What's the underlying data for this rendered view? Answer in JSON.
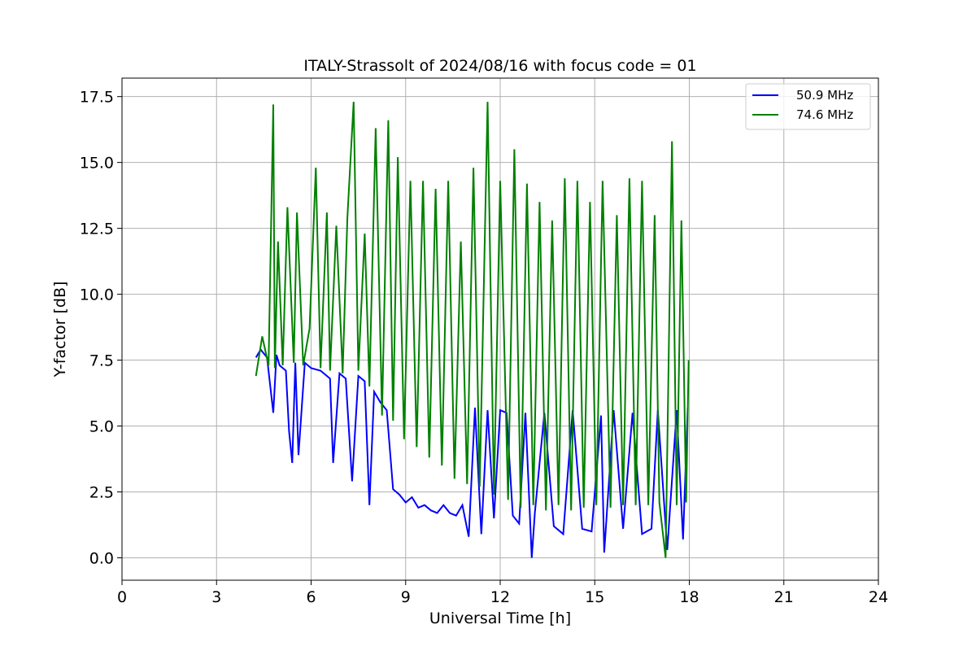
{
  "chart_data": {
    "type": "line",
    "title": "ITALY-Strassolt of 2024/08/16 with focus code = 01",
    "xlabel": "Universal Time [h]",
    "ylabel": "Y-factor [dB]",
    "xlim": [
      0,
      24
    ],
    "ylim": [
      -0.85,
      18.2
    ],
    "xticks": [
      0,
      3,
      6,
      9,
      12,
      15,
      18,
      21,
      24
    ],
    "xtick_labels": [
      "0",
      "3",
      "6",
      "9",
      "12",
      "15",
      "18",
      "21",
      "24"
    ],
    "yticks": [
      0.0,
      2.5,
      5.0,
      7.5,
      10.0,
      12.5,
      15.0,
      17.5
    ],
    "ytick_labels": [
      "0.0",
      "2.5",
      "5.0",
      "7.5",
      "10.0",
      "12.5",
      "15.0",
      "17.5"
    ],
    "grid": true,
    "legend_position": "top-right",
    "series": [
      {
        "name": "50.9 MHz",
        "color": "#0000ff",
        "x": [
          4.25,
          4.4,
          4.6,
          4.8,
          4.9,
          5.0,
          5.2,
          5.3,
          5.4,
          5.5,
          5.6,
          5.8,
          6.0,
          6.3,
          6.6,
          6.7,
          6.9,
          7.1,
          7.3,
          7.5,
          7.7,
          7.85,
          8.0,
          8.2,
          8.4,
          8.6,
          8.8,
          9.0,
          9.2,
          9.4,
          9.6,
          9.8,
          10.0,
          10.2,
          10.4,
          10.6,
          10.8,
          11.0,
          11.2,
          11.4,
          11.6,
          11.8,
          12.0,
          12.2,
          12.4,
          12.6,
          12.8,
          13.0,
          13.1,
          13.4,
          13.7,
          14.0,
          14.3,
          14.6,
          14.9,
          15.2,
          15.3,
          15.6,
          15.9,
          16.2,
          16.5,
          16.8,
          17.0,
          17.3,
          17.6,
          17.8,
          17.95
        ],
        "y": [
          7.6,
          7.9,
          7.6,
          5.5,
          7.7,
          7.3,
          7.1,
          4.8,
          3.6,
          7.4,
          3.9,
          7.4,
          7.2,
          7.1,
          6.8,
          3.6,
          7.0,
          6.8,
          2.9,
          6.9,
          6.7,
          2.0,
          6.3,
          5.9,
          5.6,
          2.6,
          2.4,
          2.1,
          2.3,
          1.9,
          2.0,
          1.8,
          1.7,
          2.0,
          1.7,
          1.6,
          2.0,
          0.8,
          5.7,
          0.9,
          5.6,
          1.5,
          5.6,
          5.5,
          1.6,
          1.3,
          5.5,
          0.0,
          1.7,
          5.5,
          1.2,
          0.9,
          5.6,
          1.1,
          1.0,
          5.4,
          0.2,
          5.6,
          1.1,
          5.5,
          0.9,
          1.1,
          5.6,
          0.3,
          5.6,
          0.7,
          5.7
        ]
      },
      {
        "name": "74.6 MHz",
        "color": "#008000",
        "x": [
          4.25,
          4.45,
          4.65,
          4.8,
          4.85,
          4.95,
          5.1,
          5.25,
          5.45,
          5.55,
          5.75,
          5.95,
          6.15,
          6.3,
          6.5,
          6.6,
          6.8,
          7.0,
          7.15,
          7.35,
          7.5,
          7.7,
          7.85,
          8.05,
          8.25,
          8.45,
          8.6,
          8.75,
          8.95,
          9.15,
          9.35,
          9.55,
          9.75,
          9.95,
          10.15,
          10.35,
          10.55,
          10.75,
          10.95,
          11.15,
          11.35,
          11.6,
          11.8,
          12.0,
          12.25,
          12.45,
          12.65,
          12.85,
          13.05,
          13.25,
          13.45,
          13.65,
          13.85,
          14.05,
          14.25,
          14.45,
          14.65,
          14.85,
          15.05,
          15.25,
          15.5,
          15.7,
          15.9,
          16.1,
          16.3,
          16.5,
          16.7,
          16.9,
          17.05,
          17.25,
          17.45,
          17.6,
          17.75,
          17.9,
          17.98
        ],
        "y": [
          6.9,
          8.4,
          7.3,
          17.2,
          7.2,
          12.0,
          7.3,
          13.3,
          7.4,
          13.1,
          7.3,
          8.7,
          14.8,
          7.2,
          13.1,
          7.1,
          12.6,
          7.0,
          12.9,
          17.3,
          7.1,
          12.3,
          6.5,
          16.3,
          5.4,
          16.6,
          5.2,
          15.2,
          4.5,
          14.3,
          4.2,
          14.3,
          3.8,
          14.0,
          3.5,
          14.3,
          3.0,
          12.0,
          2.8,
          14.8,
          2.7,
          17.3,
          2.4,
          14.3,
          2.2,
          15.5,
          1.9,
          14.2,
          2.0,
          13.5,
          1.8,
          12.8,
          2.0,
          14.4,
          1.8,
          14.3,
          1.9,
          13.5,
          2.0,
          14.3,
          1.9,
          13.0,
          2.0,
          14.4,
          2.0,
          14.3,
          2.0,
          13.0,
          2.1,
          0.0,
          15.8,
          2.0,
          12.8,
          2.1,
          7.5
        ]
      }
    ]
  }
}
